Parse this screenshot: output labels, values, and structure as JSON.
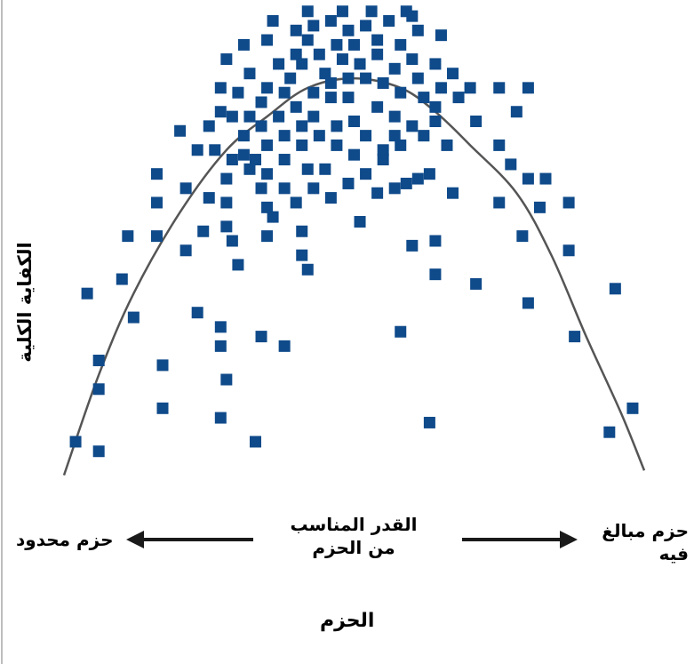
{
  "chart_data": {
    "type": "scatter",
    "title": "",
    "ylabel": "الكفاية الكلية",
    "xlabel": "الحزم",
    "x_annotations": {
      "left": "حزم محدود",
      "center": "القدر المناسب من الحزم",
      "right": "حزم مبالغ فيه"
    },
    "xlim": [
      0,
      100
    ],
    "ylim": [
      0,
      100
    ],
    "grid": false,
    "ticks": false,
    "marker": "square",
    "colors": {
      "points": "#0f4a8a",
      "curve": "#555555",
      "arrows": "#1a1a1a"
    },
    "points": [
      [
        2,
        8
      ],
      [
        6,
        6
      ],
      [
        6,
        19
      ],
      [
        6,
        25
      ],
      [
        4,
        39
      ],
      [
        10,
        42
      ],
      [
        12,
        34
      ],
      [
        11,
        51
      ],
      [
        16,
        51
      ],
      [
        16,
        58
      ],
      [
        16,
        64
      ],
      [
        17,
        24
      ],
      [
        17,
        15
      ],
      [
        21,
        61
      ],
      [
        21,
        48
      ],
      [
        23,
        35
      ],
      [
        24,
        52
      ],
      [
        27,
        32
      ],
      [
        27,
        28
      ],
      [
        28,
        21
      ],
      [
        27,
        13
      ],
      [
        33,
        8
      ],
      [
        34,
        30
      ],
      [
        38,
        28
      ],
      [
        30,
        45
      ],
      [
        29,
        50
      ],
      [
        28,
        53
      ],
      [
        23,
        69
      ],
      [
        20,
        73
      ],
      [
        26,
        69
      ],
      [
        25,
        59
      ],
      [
        28,
        63
      ],
      [
        28,
        58
      ],
      [
        35,
        51
      ],
      [
        36,
        55
      ],
      [
        41,
        47
      ],
      [
        42,
        44
      ],
      [
        41,
        52
      ],
      [
        58,
        31
      ],
      [
        63,
        12
      ],
      [
        60,
        49
      ],
      [
        64,
        50
      ],
      [
        64,
        43
      ],
      [
        71,
        41
      ],
      [
        80,
        37
      ],
      [
        88,
        30
      ],
      [
        95,
        40
      ],
      [
        98,
        15
      ],
      [
        94,
        10
      ],
      [
        87,
        48
      ],
      [
        79,
        51
      ],
      [
        82,
        57
      ],
      [
        87,
        58
      ],
      [
        80,
        63
      ],
      [
        83,
        63
      ],
      [
        75,
        58
      ],
      [
        67,
        60
      ],
      [
        75,
        70
      ],
      [
        77,
        66
      ],
      [
        75,
        82
      ],
      [
        80,
        82
      ],
      [
        78,
        77
      ],
      [
        70,
        82
      ],
      [
        71,
        75
      ],
      [
        64,
        75
      ],
      [
        66,
        70
      ],
      [
        63,
        64
      ],
      [
        61,
        63
      ],
      [
        42,
        98
      ],
      [
        48,
        98
      ],
      [
        53,
        98
      ],
      [
        59,
        98
      ],
      [
        60,
        97
      ],
      [
        36,
        96
      ],
      [
        40,
        94
      ],
      [
        43,
        95
      ],
      [
        46,
        96
      ],
      [
        49,
        94
      ],
      [
        52,
        95
      ],
      [
        56,
        96
      ],
      [
        61,
        94
      ],
      [
        65,
        93
      ],
      [
        35,
        92
      ],
      [
        31,
        91
      ],
      [
        28,
        88
      ],
      [
        32,
        85
      ],
      [
        27,
        82
      ],
      [
        30,
        81
      ],
      [
        27,
        77
      ],
      [
        34,
        79
      ],
      [
        38,
        81
      ],
      [
        41,
        87
      ],
      [
        44,
        89
      ],
      [
        47,
        91
      ],
      [
        50,
        91
      ],
      [
        54,
        89
      ],
      [
        57,
        86
      ],
      [
        60,
        88
      ],
      [
        64,
        87
      ],
      [
        67,
        85
      ],
      [
        68,
        80
      ],
      [
        65,
        82
      ],
      [
        62,
        80
      ],
      [
        58,
        81
      ],
      [
        55,
        83
      ],
      [
        52,
        84
      ],
      [
        49,
        84
      ],
      [
        46,
        83
      ],
      [
        43,
        81
      ],
      [
        40,
        78
      ],
      [
        37,
        76
      ],
      [
        34,
        74
      ],
      [
        31,
        72
      ],
      [
        31,
        68
      ],
      [
        33,
        67
      ],
      [
        35,
        64
      ],
      [
        38,
        67
      ],
      [
        41,
        70
      ],
      [
        44,
        72
      ],
      [
        47,
        74
      ],
      [
        50,
        75
      ],
      [
        54,
        78
      ],
      [
        57,
        76
      ],
      [
        60,
        74
      ],
      [
        62,
        72
      ],
      [
        58,
        70
      ],
      [
        55,
        67
      ],
      [
        52,
        64
      ],
      [
        49,
        62
      ],
      [
        46,
        59
      ],
      [
        43,
        61
      ],
      [
        40,
        58
      ],
      [
        38,
        61
      ],
      [
        34,
        61
      ],
      [
        35,
        57
      ],
      [
        54,
        60
      ],
      [
        57,
        61
      ],
      [
        59,
        62
      ],
      [
        51,
        54
      ],
      [
        45,
        65
      ],
      [
        42,
        65
      ],
      [
        43,
        76
      ],
      [
        46,
        80
      ],
      [
        49,
        80
      ],
      [
        52,
        72
      ],
      [
        55,
        69
      ],
      [
        50,
        68
      ],
      [
        47,
        70
      ],
      [
        41,
        74
      ],
      [
        38,
        72
      ],
      [
        35,
        70
      ],
      [
        32,
        65
      ],
      [
        29,
        67
      ],
      [
        32,
        76
      ],
      [
        35,
        82
      ],
      [
        39,
        84
      ],
      [
        42,
        92
      ],
      [
        45,
        85
      ],
      [
        48,
        88
      ],
      [
        51,
        87
      ],
      [
        54,
        92
      ],
      [
        58,
        91
      ],
      [
        57,
        72
      ],
      [
        61,
        84
      ],
      [
        64,
        78
      ],
      [
        40,
        89
      ],
      [
        37,
        87
      ],
      [
        29,
        76
      ],
      [
        25,
        74
      ]
    ],
    "trend_curve": [
      [
        0,
        1
      ],
      [
        6,
        22
      ],
      [
        12,
        39
      ],
      [
        20,
        56
      ],
      [
        28,
        69
      ],
      [
        35,
        76
      ],
      [
        42,
        82
      ],
      [
        50,
        84
      ],
      [
        58,
        82
      ],
      [
        64,
        77
      ],
      [
        70,
        70
      ],
      [
        78,
        60
      ],
      [
        84,
        47
      ],
      [
        90,
        30
      ],
      [
        96,
        14
      ],
      [
        100,
        2
      ]
    ]
  }
}
